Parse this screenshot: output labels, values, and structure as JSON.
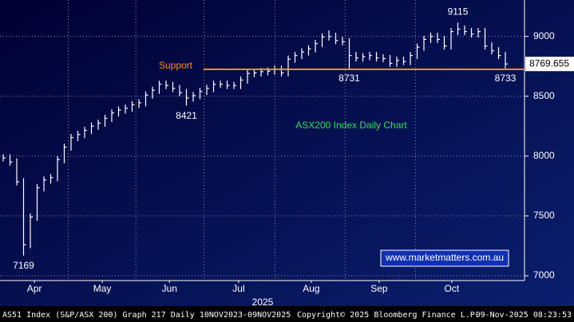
{
  "chart_data": {
    "type": "ohlc",
    "title": "ASX200 Index Daily Chart",
    "x_label": "2025",
    "watermark": "www.marketmatters.com.au",
    "footer": {
      "left": "AS51 Index (S&P/ASX 200) Graph 217 Daily 10NOV2023-09NOV2025",
      "center": "Copyright© 2025 Bloomberg Finance L.P.",
      "right": "09-Nov-2025 08:23:53"
    },
    "support": {
      "label": "Support",
      "value": 8725,
      "color": "#ff8c1a"
    },
    "color": "#ffffff",
    "grid": true,
    "ylim": [
      6960,
      9304
    ],
    "yticks": [
      7000,
      7500,
      8000,
      8500,
      9000
    ],
    "xticks": [
      {
        "value": 4.6,
        "label": "Apr"
      },
      {
        "value": 14.6,
        "label": "May"
      },
      {
        "value": 24.5,
        "label": "Jun"
      },
      {
        "value": 34.7,
        "label": "Jul"
      },
      {
        "value": 45.4,
        "label": "Aug"
      },
      {
        "value": 55.4,
        "label": "Sep"
      },
      {
        "value": 66.1,
        "label": "Oct"
      }
    ],
    "categories": [
      null,
      null,
      null,
      null,
      null,
      null,
      null,
      null,
      null,
      null,
      null,
      null,
      null,
      null,
      null,
      null,
      null,
      null,
      null,
      null,
      null,
      null,
      null,
      null,
      null,
      null,
      null,
      null,
      null,
      null,
      null,
      null,
      null,
      null,
      null,
      null,
      null,
      null,
      null,
      null,
      null,
      null,
      null,
      null,
      null,
      null,
      null,
      null,
      null,
      null,
      null,
      null,
      null,
      null,
      null,
      null,
      null,
      null,
      null,
      null,
      null,
      null,
      null,
      null,
      null,
      null,
      null,
      null,
      null,
      null,
      null,
      null,
      null,
      null,
      null
    ],
    "high": [
      8015,
      8015,
      7980,
      7815,
      7520,
      7765,
      7830,
      7850,
      8000,
      8105,
      8185,
      8210,
      8245,
      8280,
      8305,
      8345,
      8390,
      8415,
      8430,
      8460,
      8475,
      8540,
      8580,
      8630,
      8630,
      8620,
      8595,
      8560,
      8535,
      8570,
      8595,
      8630,
      8630,
      8630,
      8620,
      8665,
      8720,
      8725,
      8735,
      8740,
      8755,
      8755,
      8840,
      8870,
      8900,
      8925,
      8970,
      9025,
      9050,
      9030,
      8995,
      8985,
      8870,
      8860,
      8870,
      8870,
      8850,
      8845,
      8830,
      8830,
      8870,
      8940,
      9005,
      9030,
      9030,
      9005,
      9070,
      9115,
      9090,
      9070,
      9070,
      9070,
      8950,
      8910,
      8870
    ],
    "low": [
      7955,
      7920,
      7755,
      7169,
      7230,
      7460,
      7705,
      7770,
      7790,
      7940,
      8045,
      8125,
      8150,
      8185,
      8220,
      8245,
      8285,
      8330,
      8355,
      8370,
      8400,
      8415,
      8480,
      8520,
      8560,
      8535,
      8500,
      8421,
      8455,
      8475,
      8510,
      8535,
      8570,
      8560,
      8560,
      8560,
      8605,
      8660,
      8665,
      8675,
      8680,
      8665,
      8665,
      8780,
      8810,
      8840,
      8865,
      8910,
      8965,
      8935,
      8925,
      8731,
      8790,
      8790,
      8800,
      8790,
      8785,
      8745,
      8745,
      8760,
      8760,
      8810,
      8880,
      8945,
      8945,
      8890,
      8890,
      9010,
      9010,
      8990,
      8990,
      8890,
      8850,
      8810,
      8733
    ],
    "close": [
      7985,
      7950,
      7785,
      7260,
      7490,
      7735,
      7800,
      7820,
      7970,
      8075,
      8155,
      8180,
      8215,
      8250,
      8275,
      8315,
      8360,
      8385,
      8400,
      8430,
      8445,
      8510,
      8550,
      8600,
      8590,
      8565,
      8530,
      8485,
      8505,
      8540,
      8565,
      8600,
      8600,
      8590,
      8590,
      8635,
      8690,
      8695,
      8705,
      8710,
      8725,
      8695,
      8810,
      8840,
      8870,
      8895,
      8940,
      8995,
      9000,
      8965,
      8955,
      8840,
      8820,
      8830,
      8840,
      8820,
      8815,
      8775,
      8800,
      8790,
      8840,
      8910,
      8975,
      9000,
      8975,
      8920,
      9040,
      9060,
      9040,
      9020,
      9040,
      8920,
      8880,
      8840,
      8769.655
    ],
    "low_labels": [
      null,
      null,
      null,
      "7169",
      null,
      null,
      null,
      null,
      null,
      null,
      null,
      null,
      null,
      null,
      null,
      null,
      null,
      null,
      null,
      null,
      null,
      null,
      null,
      null,
      null,
      null,
      null,
      "8421",
      null,
      null,
      null,
      null,
      null,
      null,
      null,
      null,
      null,
      null,
      null,
      null,
      null,
      null,
      null,
      null,
      null,
      null,
      null,
      null,
      null,
      null,
      null,
      "8731",
      null,
      null,
      null,
      null,
      null,
      null,
      null,
      null,
      null,
      null,
      null,
      null,
      null,
      null,
      null,
      null,
      null,
      null,
      null,
      null,
      null,
      null,
      "8733"
    ],
    "high_labels": [
      null,
      null,
      null,
      null,
      null,
      null,
      null,
      null,
      null,
      null,
      null,
      null,
      null,
      null,
      null,
      null,
      null,
      null,
      null,
      null,
      null,
      null,
      null,
      null,
      null,
      null,
      null,
      null,
      null,
      null,
      null,
      null,
      null,
      null,
      null,
      null,
      null,
      null,
      null,
      null,
      null,
      null,
      null,
      null,
      null,
      null,
      null,
      null,
      null,
      null,
      null,
      null,
      null,
      null,
      null,
      null,
      null,
      null,
      null,
      null,
      null,
      null,
      null,
      null,
      null,
      null,
      null,
      "9115",
      null,
      null,
      null,
      null,
      null,
      null,
      null
    ]
  }
}
